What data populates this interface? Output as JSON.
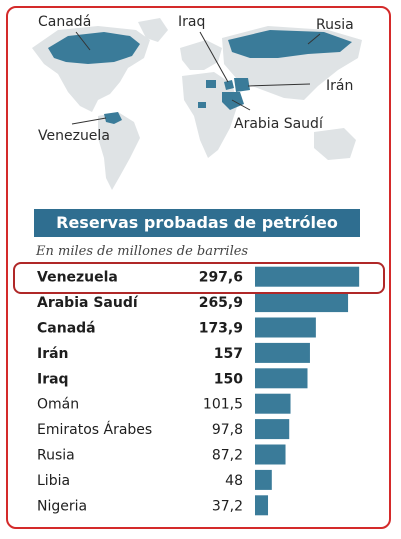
{
  "map": {
    "labels": [
      "Canadá",
      "Iraq",
      "Rusia",
      "Irán",
      "Arabia Saudí",
      "Venezuela"
    ]
  },
  "banner": {
    "title": "Reservas probadas de petróleo"
  },
  "subtitle": "En miles de millones de barriles",
  "chart_data": {
    "type": "bar",
    "orientation": "horizontal",
    "title": "Reservas probadas de petróleo",
    "subtitle": "En miles de millones de barriles",
    "categories": [
      "Venezuela",
      "Arabia Saudí",
      "Canadá",
      "Irán",
      "Iraq",
      "Omán",
      "Emiratos Árabes",
      "Rusia",
      "Libia",
      "Nigeria"
    ],
    "labels": [
      "297,6",
      "265,9",
      "173,9",
      "157",
      "150",
      "101,5",
      "97,8",
      "87,2",
      "48",
      "37,2"
    ],
    "values": [
      297.6,
      265.9,
      173.9,
      157,
      150,
      101.5,
      97.8,
      87.2,
      48,
      37.2
    ],
    "bold": [
      true,
      true,
      true,
      true,
      true,
      false,
      false,
      false,
      false,
      false
    ],
    "highlighted": "Venezuela",
    "xlim": [
      0,
      300
    ],
    "colors": {
      "bar": "#3a7b99",
      "highlight_outline": "#b02828"
    }
  }
}
